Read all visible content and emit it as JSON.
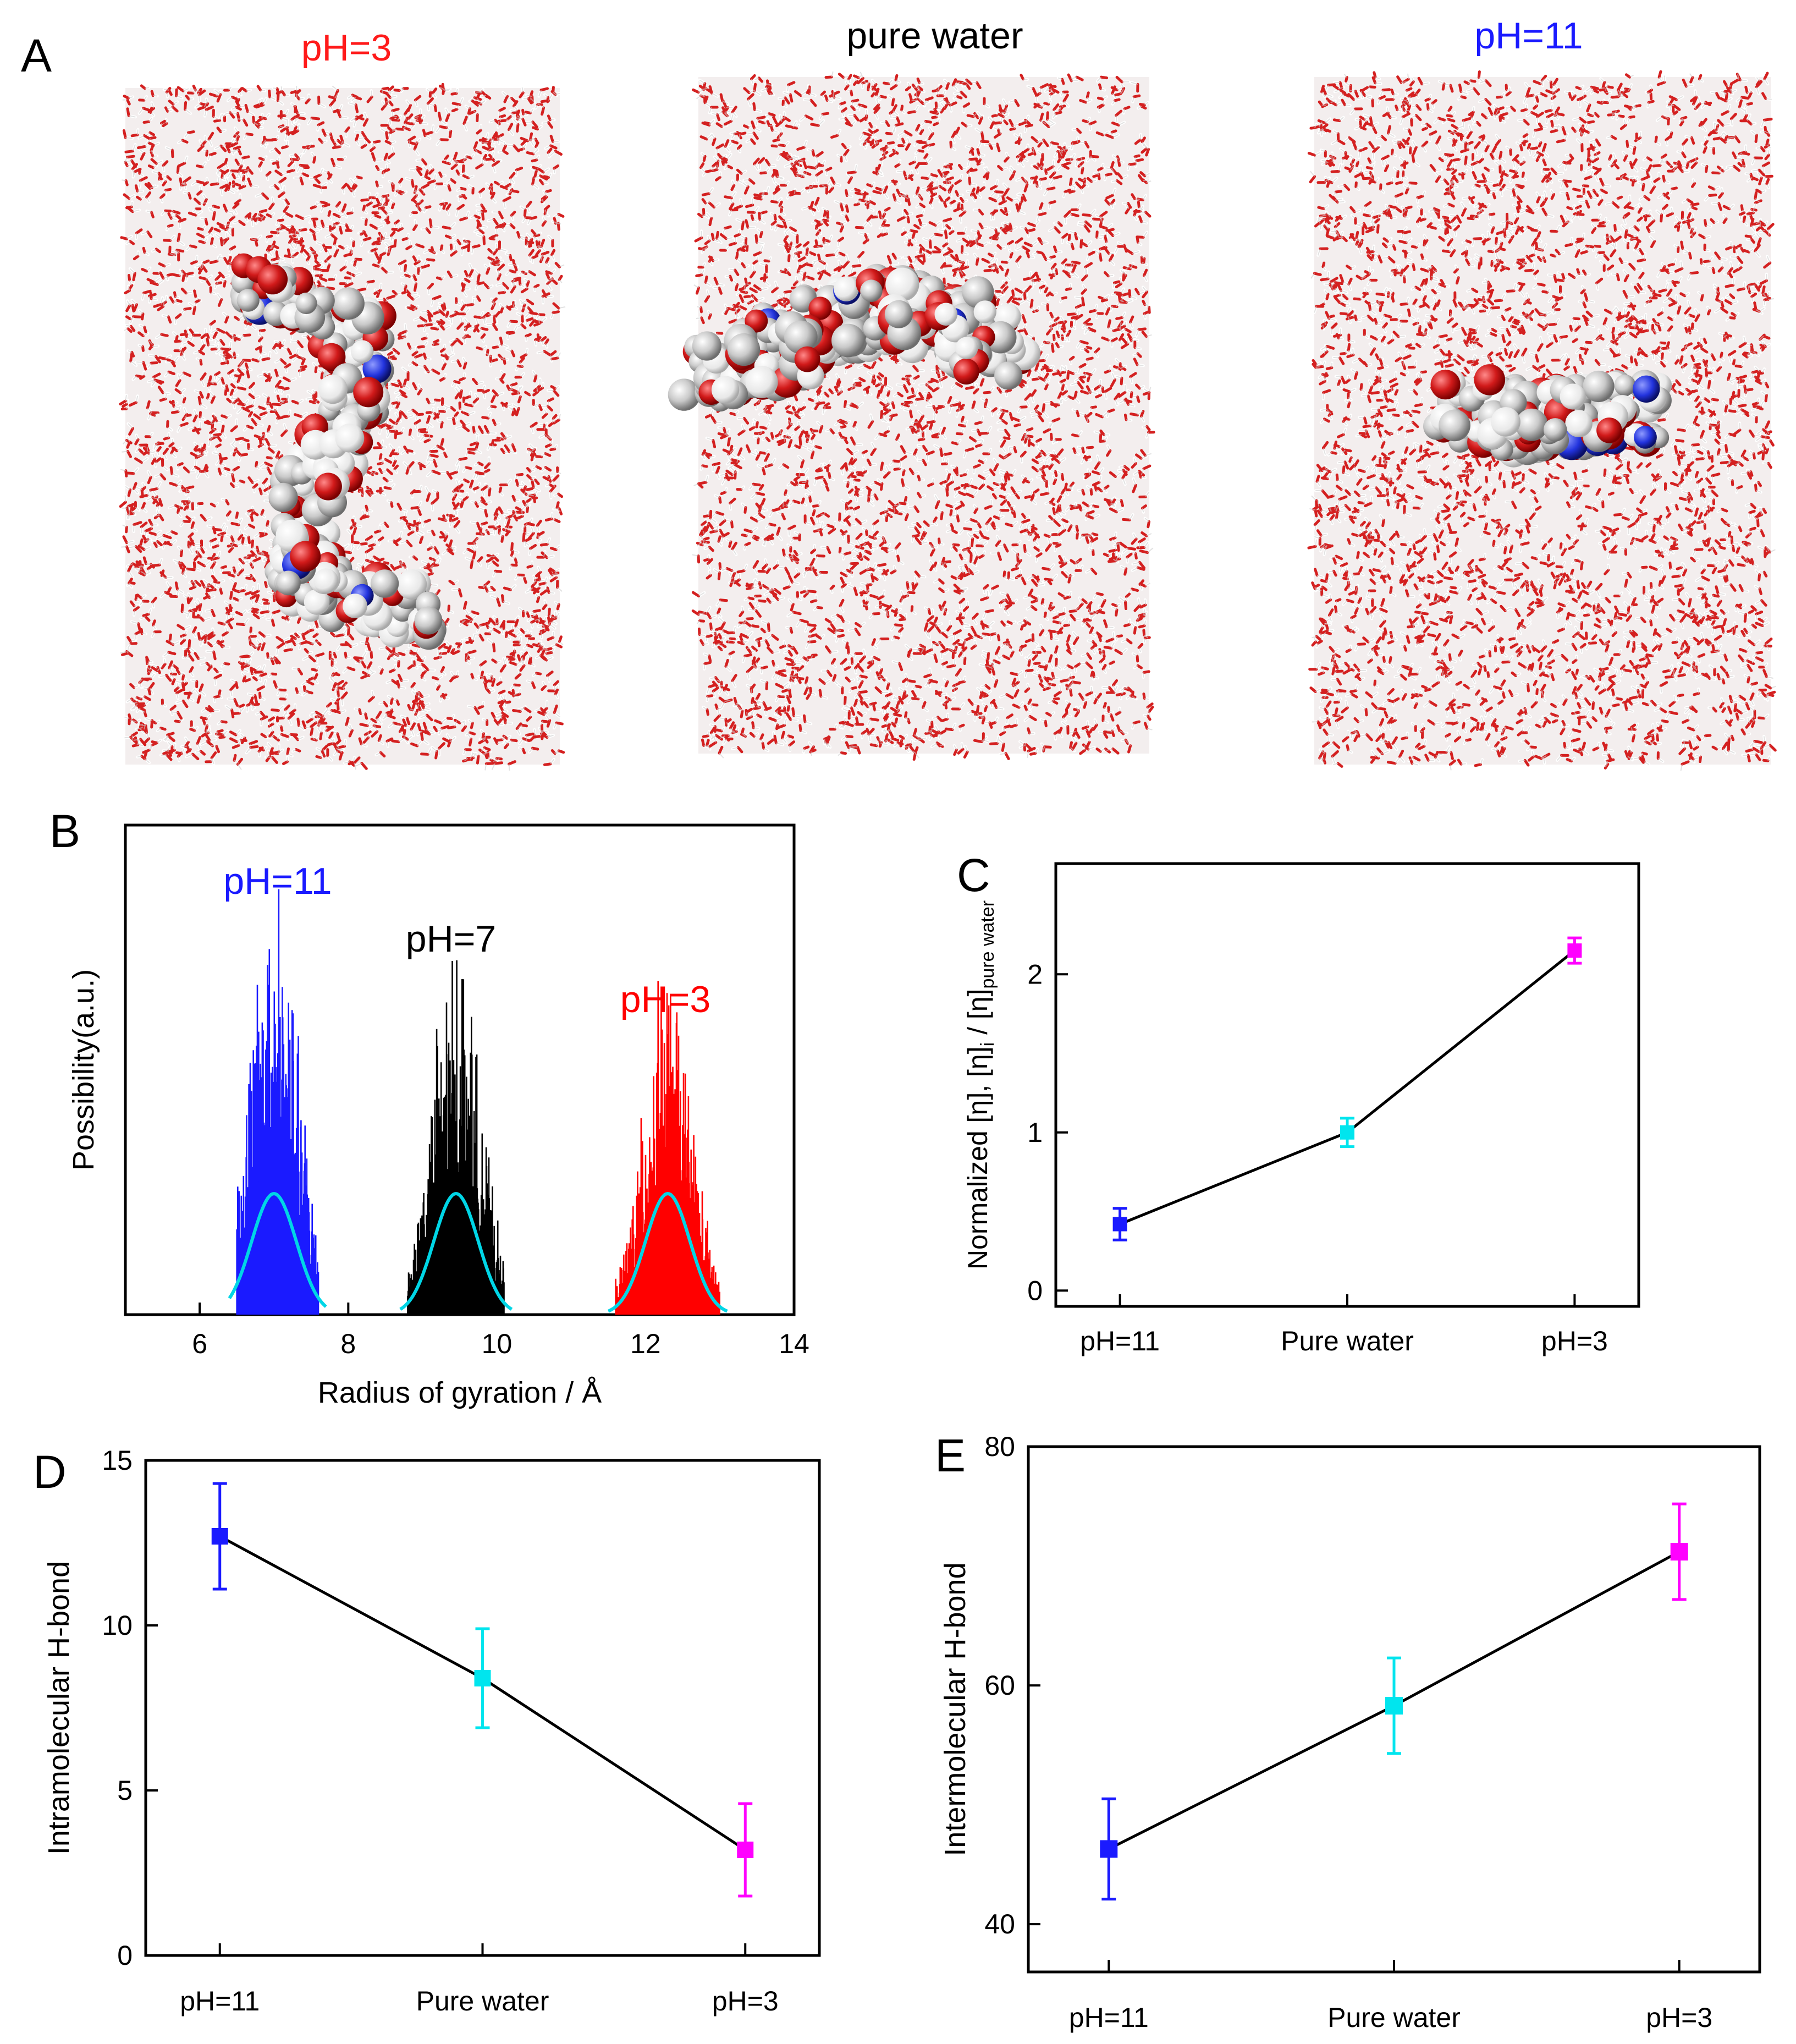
{
  "colors": {
    "water_red": "#d42020",
    "water_white": "#eeeeee",
    "molecule_gray": "#b8b8b8",
    "nitrogen_blue": "#2233dd",
    "blue": "#1a1aff",
    "cyan": "#00e5ee",
    "magenta": "#ff00ff",
    "red": "#ff0000",
    "black": "#000000"
  },
  "panelA": {
    "letter": "A",
    "titles": [
      {
        "text": "pH=3",
        "color": "#ff1a1a"
      },
      {
        "text": "pure water",
        "color": "#000000"
      },
      {
        "text": "pH=11",
        "color": "#1a1aff"
      }
    ]
  },
  "chart_data": [
    {
      "panel": "B",
      "type": "histogram",
      "xlabel": "Radius of gyration / Å",
      "ylabel": "Possibility(a.u.)",
      "xlim": [
        5,
        14
      ],
      "xticks": [
        "6",
        "8",
        "10",
        "12",
        "14"
      ],
      "series": [
        {
          "name": "pH=11",
          "color": "#1a1aff",
          "center": 7.0,
          "sigma": 0.3,
          "x_range": [
            6.5,
            7.6
          ]
        },
        {
          "name": "pH=7",
          "color": "#000000",
          "center": 9.45,
          "sigma": 0.3,
          "x_range": [
            8.8,
            10.1
          ]
        },
        {
          "name": "pH=3",
          "color": "#ff0000",
          "center": 12.3,
          "sigma": 0.3,
          "x_range": [
            11.6,
            13.0
          ]
        }
      ],
      "fit_color": "#00d6e6"
    },
    {
      "panel": "C",
      "type": "line",
      "categories": [
        "pH=11",
        "Pure water",
        "pH=3"
      ],
      "values": [
        0.42,
        1.0,
        2.15
      ],
      "errors": [
        0.1,
        0.09,
        0.08
      ],
      "colors": [
        "#1a1aff",
        "#00e5ee",
        "#ff00ff"
      ],
      "ylabel_main": "Normalized  [η],  [η]",
      "ylabel_sub1": "i",
      "ylabel_mid": " / [η]",
      "ylabel_sub2": "pure water",
      "ylim": [
        -0.1,
        2.7
      ],
      "yticks": [
        "0",
        "1",
        "2"
      ]
    },
    {
      "panel": "D",
      "type": "line",
      "categories": [
        "pH=11",
        "Pure water",
        "pH=3"
      ],
      "values": [
        12.7,
        8.4,
        3.2
      ],
      "errors": [
        1.6,
        1.5,
        1.4
      ],
      "colors": [
        "#1a1aff",
        "#00e5ee",
        "#ff00ff"
      ],
      "ylabel": "Intramolecular H-bond",
      "ylim": [
        0,
        15
      ],
      "yticks": [
        "0",
        "5",
        "10",
        "15"
      ]
    },
    {
      "panel": "E",
      "type": "line",
      "categories": [
        "pH=11",
        "Pure water",
        "pH=3"
      ],
      "values": [
        46.3,
        58.3,
        71.2
      ],
      "errors": [
        4.2,
        4.0,
        4.0
      ],
      "colors": [
        "#1a1aff",
        "#00e5ee",
        "#ff00ff"
      ],
      "ylabel": "Intermolecular H-bond",
      "ylim": [
        36,
        80
      ],
      "yticks": [
        "40",
        "60",
        "80"
      ]
    }
  ]
}
